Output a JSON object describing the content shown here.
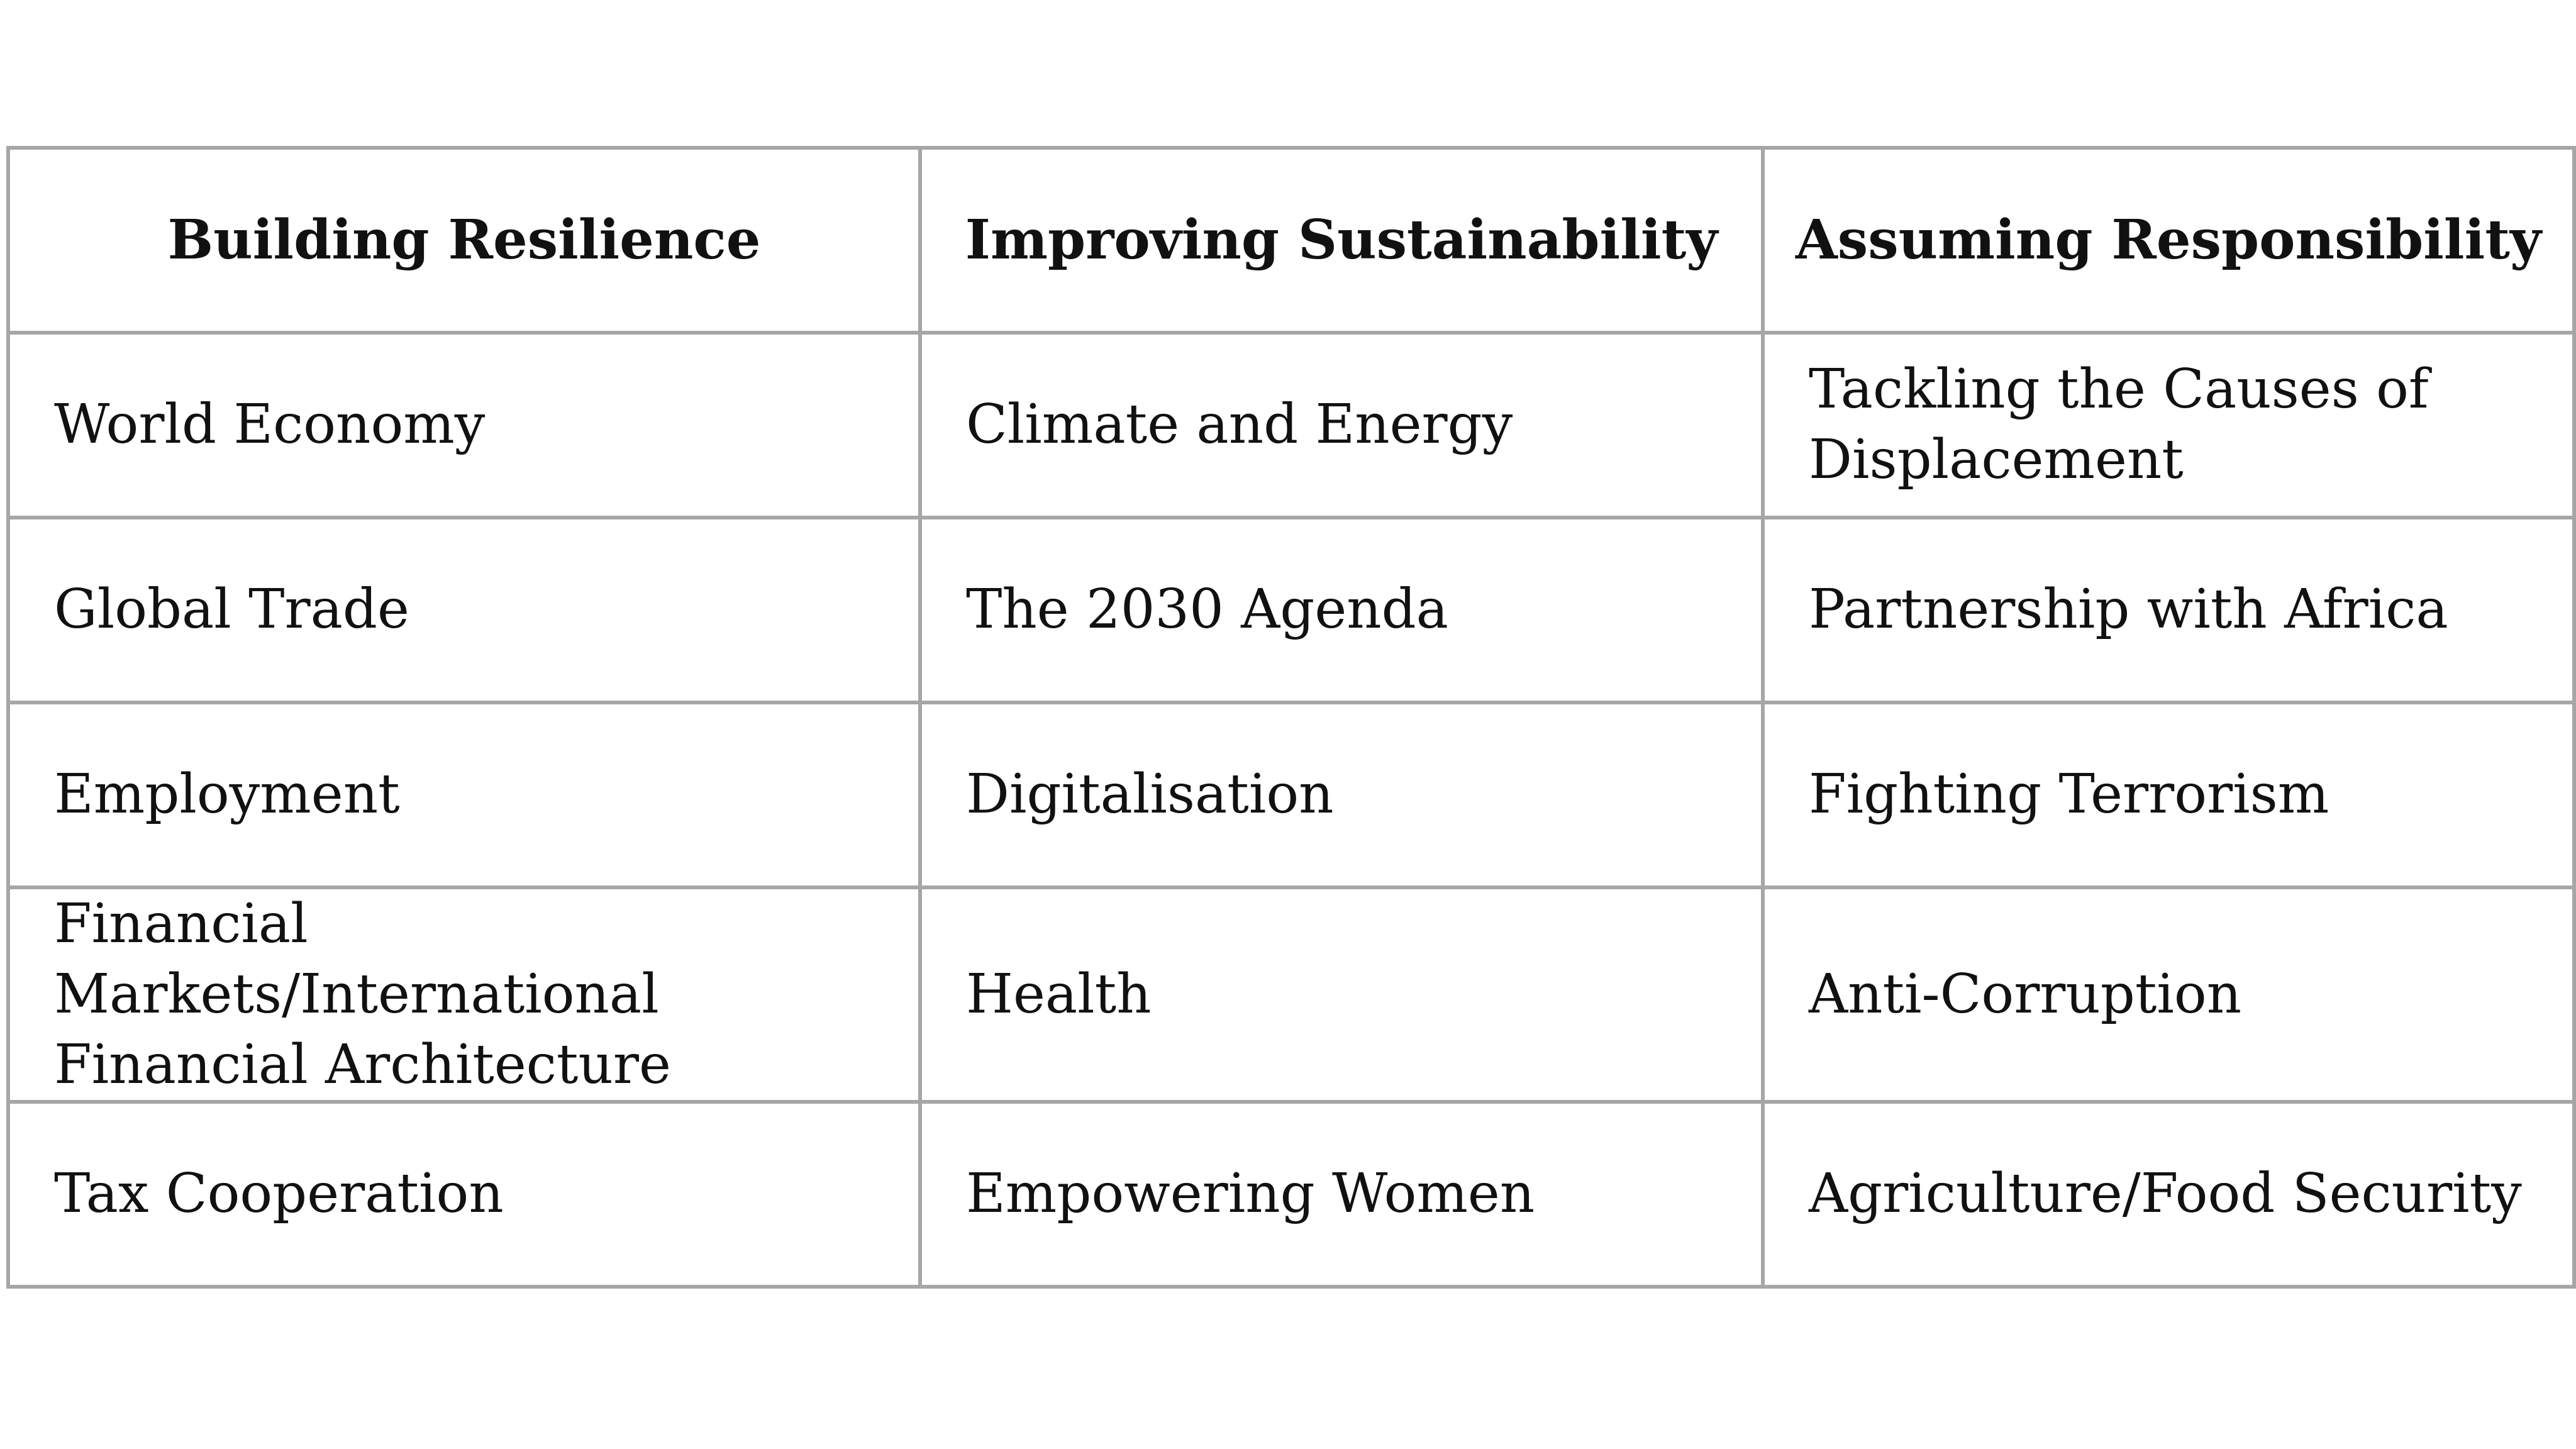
{
  "table": {
    "headers": [
      "Building Resilience",
      "Improving Sustainability",
      "Assuming Responsibility"
    ],
    "rows": [
      [
        "World Economy",
        "Climate and Energy",
        "Tackling the Causes of Displacement"
      ],
      [
        "Global Trade",
        "The 2030 Agenda",
        "Partnership with Africa"
      ],
      [
        "Employment",
        "Digitalisation",
        "Fighting Terrorism"
      ],
      [
        "Financial Markets/International Financial Architecture",
        "Health",
        "Anti-Corruption"
      ],
      [
        "Tax Cooperation",
        "Empowering Women",
        "Agriculture/Food Security"
      ]
    ]
  }
}
